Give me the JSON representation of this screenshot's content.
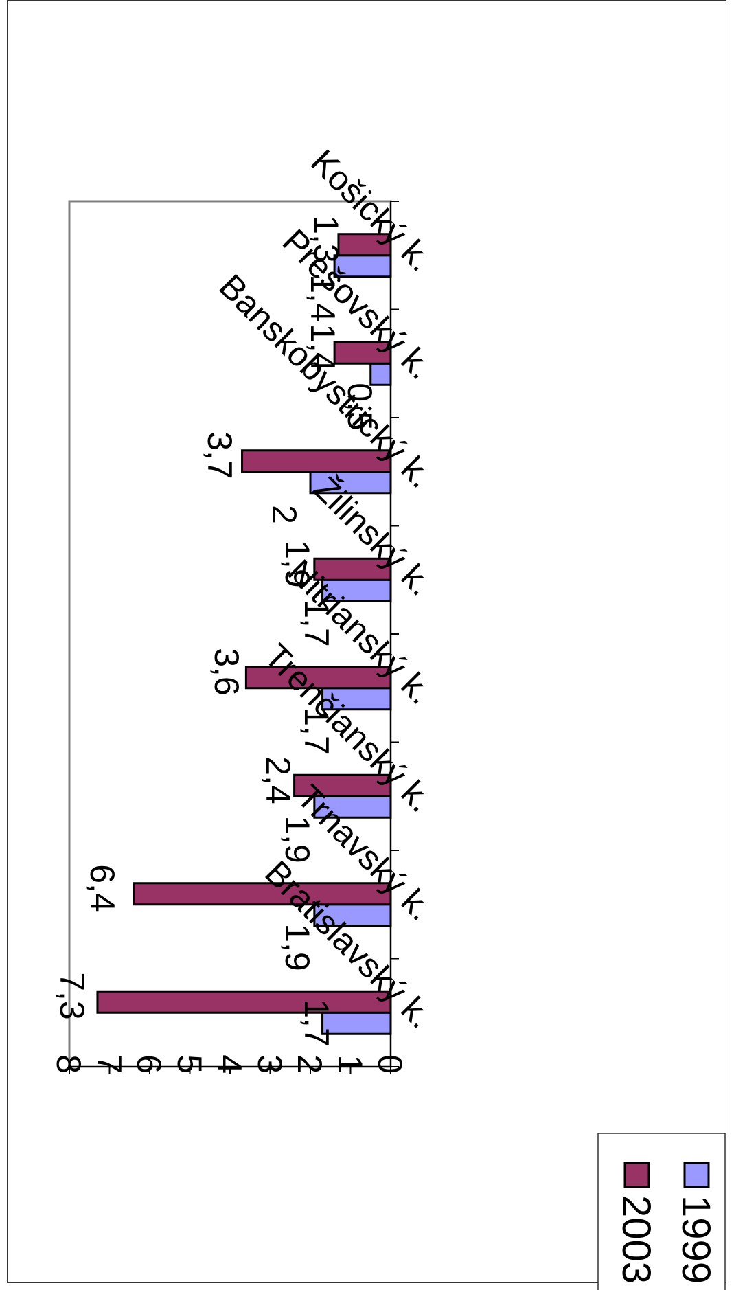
{
  "chart_data": {
    "type": "bar",
    "orientation": "rotated-90-clockwise",
    "categories": [
      "Bratislavský k.",
      "Trnavský k.",
      "Trenčianský k.",
      "Nitrianský k.",
      "Žilinský k.",
      "Banskobystrický k.",
      "Prešovský k.",
      "Košický k."
    ],
    "series": [
      {
        "name": "1999",
        "color": "#9999ff",
        "values": [
          1.7,
          1.9,
          1.9,
          1.7,
          1.7,
          2,
          0.5,
          1.4
        ]
      },
      {
        "name": "2003",
        "color": "#993366",
        "values": [
          7.3,
          6.4,
          2.4,
          3.6,
          1.9,
          3.7,
          1.4,
          1.3
        ]
      }
    ],
    "data_labels": {
      "1999": [
        "1,7",
        "1,9",
        "1,9",
        "1,7",
        "1,7",
        "2",
        "0,5",
        "1,4"
      ],
      "2003": [
        "7,3",
        "6,4",
        "2,4",
        "3,6",
        "1,9",
        "3,7",
        "1,4",
        "1,3"
      ]
    },
    "ylim": [
      0,
      8
    ],
    "yticks": [
      "0",
      "1",
      "2",
      "3",
      "4",
      "5",
      "6",
      "7",
      "8"
    ],
    "legend": {
      "placement": "top-right",
      "entries": [
        "1999",
        "2003"
      ]
    },
    "grid": false
  }
}
